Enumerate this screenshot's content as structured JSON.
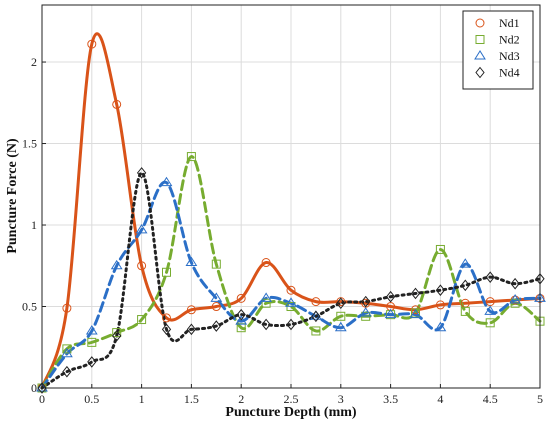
{
  "chart_data": {
    "type": "line",
    "title": "",
    "xlabel": "Puncture Depth (mm)",
    "ylabel": "Puncture Force (N)",
    "xlim": [
      0,
      5
    ],
    "ylim": [
      0,
      2.35
    ],
    "xticks": [
      0,
      0.5,
      1,
      1.5,
      2,
      2.5,
      3,
      3.5,
      4,
      4.5,
      5
    ],
    "xtick_labels": [
      "0",
      "0.5",
      "1",
      "1.5",
      "2",
      "2.5",
      "3",
      "3.5",
      "4",
      "4.5",
      "5"
    ],
    "yticks": [
      0,
      0.5,
      1,
      1.5,
      2
    ],
    "ytick_labels": [
      "0",
      "0.5",
      "1",
      "1.5",
      "2"
    ],
    "grid": true,
    "legend": "top-right",
    "series": [
      {
        "name": "Nd1",
        "color": "#d95319",
        "marker": "circle",
        "line_style": "solid",
        "points": [
          [
            0,
            0
          ],
          [
            0.25,
            0.49
          ],
          [
            0.5,
            2.11
          ],
          [
            0.75,
            1.74
          ],
          [
            1,
            0.75
          ],
          [
            1.25,
            0.43
          ],
          [
            1.5,
            0.48
          ],
          [
            1.75,
            0.5
          ],
          [
            2,
            0.55
          ],
          [
            2.25,
            0.77
          ],
          [
            2.5,
            0.6
          ],
          [
            2.75,
            0.53
          ],
          [
            3,
            0.53
          ],
          [
            3.25,
            0.52
          ],
          [
            3.5,
            0.5
          ],
          [
            3.75,
            0.48
          ],
          [
            4,
            0.51
          ],
          [
            4.25,
            0.52
          ],
          [
            4.5,
            0.53
          ],
          [
            4.75,
            0.54
          ],
          [
            5,
            0.55
          ]
        ]
      },
      {
        "name": "Nd2",
        "color": "#77ac30",
        "marker": "square",
        "line_style": "dashed",
        "points": [
          [
            0,
            0
          ],
          [
            0.25,
            0.24
          ],
          [
            0.5,
            0.28
          ],
          [
            0.75,
            0.34
          ],
          [
            1,
            0.42
          ],
          [
            1.25,
            0.71
          ],
          [
            1.5,
            1.42
          ],
          [
            1.75,
            0.76
          ],
          [
            2,
            0.37
          ],
          [
            2.25,
            0.52
          ],
          [
            2.5,
            0.5
          ],
          [
            2.75,
            0.35
          ],
          [
            3,
            0.44
          ],
          [
            3.25,
            0.44
          ],
          [
            3.5,
            0.45
          ],
          [
            3.75,
            0.46
          ],
          [
            4,
            0.85
          ],
          [
            4.25,
            0.47
          ],
          [
            4.5,
            0.4
          ],
          [
            4.75,
            0.52
          ],
          [
            5,
            0.41
          ]
        ]
      },
      {
        "name": "Nd3",
        "color": "#2b6fc7",
        "marker": "triangle",
        "line_style": "dashed",
        "points": [
          [
            0,
            0
          ],
          [
            0.25,
            0.21
          ],
          [
            0.5,
            0.35
          ],
          [
            0.75,
            0.75
          ],
          [
            1,
            0.97
          ],
          [
            1.25,
            1.26
          ],
          [
            1.5,
            0.77
          ],
          [
            1.75,
            0.55
          ],
          [
            2,
            0.41
          ],
          [
            2.25,
            0.55
          ],
          [
            2.5,
            0.52
          ],
          [
            2.75,
            0.44
          ],
          [
            3,
            0.37
          ],
          [
            3.25,
            0.46
          ],
          [
            3.5,
            0.45
          ],
          [
            3.75,
            0.45
          ],
          [
            4,
            0.37
          ],
          [
            4.25,
            0.76
          ],
          [
            4.5,
            0.47
          ],
          [
            4.75,
            0.54
          ],
          [
            5,
            0.55
          ]
        ]
      },
      {
        "name": "Nd4",
        "color": "#222222",
        "marker": "diamond",
        "line_style": "dotted",
        "points": [
          [
            0,
            0
          ],
          [
            0.25,
            0.1
          ],
          [
            0.5,
            0.16
          ],
          [
            0.75,
            0.32
          ],
          [
            1,
            1.32
          ],
          [
            1.25,
            0.36
          ],
          [
            1.5,
            0.36
          ],
          [
            1.75,
            0.38
          ],
          [
            2,
            0.45
          ],
          [
            2.25,
            0.39
          ],
          [
            2.5,
            0.39
          ],
          [
            2.75,
            0.44
          ],
          [
            3,
            0.52
          ],
          [
            3.25,
            0.53
          ],
          [
            3.5,
            0.56
          ],
          [
            3.75,
            0.58
          ],
          [
            4,
            0.6
          ],
          [
            4.25,
            0.63
          ],
          [
            4.5,
            0.68
          ],
          [
            4.75,
            0.64
          ],
          [
            5,
            0.67
          ]
        ]
      }
    ]
  }
}
